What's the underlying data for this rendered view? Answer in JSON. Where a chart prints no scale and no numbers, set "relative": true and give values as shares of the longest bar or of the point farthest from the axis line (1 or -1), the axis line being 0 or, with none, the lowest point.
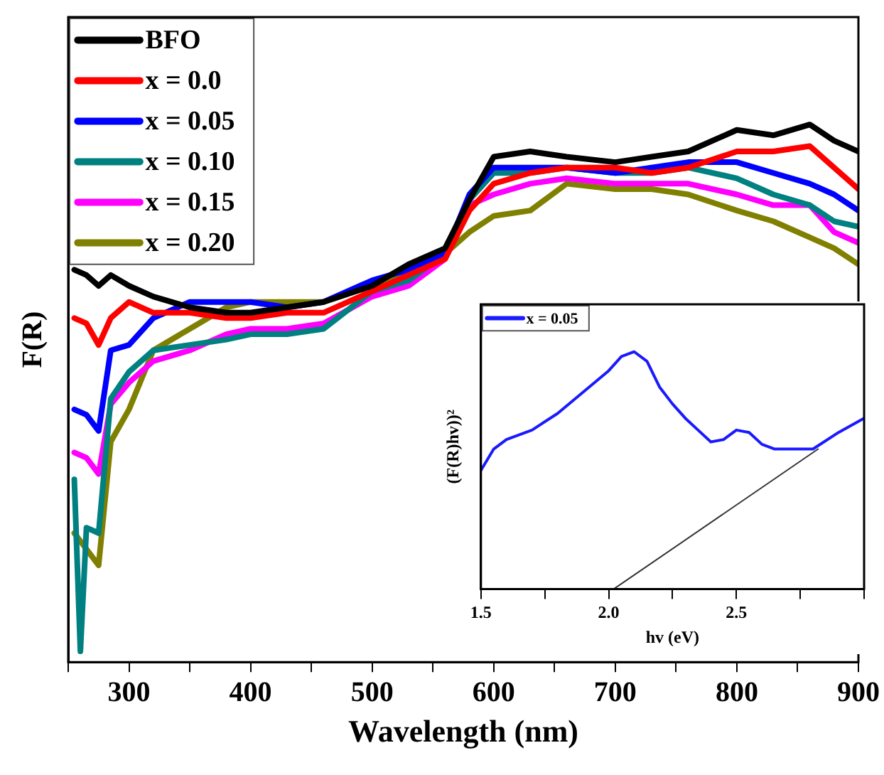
{
  "chart_data": [
    {
      "type": "line",
      "relative": true,
      "xlabel": "Wavelength (nm)",
      "ylabel": "F(R)",
      "xlim": [
        250,
        900
      ],
      "xticks": [
        {
          "value": 250,
          "label": null
        },
        300,
        {
          "value": 350,
          "label": null
        },
        400,
        {
          "value": 450,
          "label": null
        },
        500,
        {
          "value": 550,
          "label": null
        },
        600,
        {
          "value": 650,
          "label": null
        },
        700,
        {
          "value": 750,
          "label": null
        },
        800,
        {
          "value": 850,
          "label": null
        },
        900
      ],
      "x": [
        255,
        265,
        275,
        285,
        300,
        320,
        350,
        380,
        400,
        430,
        460,
        500,
        530,
        560,
        580,
        600,
        630,
        660,
        700,
        730,
        760,
        800,
        830,
        860,
        880,
        900
      ],
      "legend": "top left",
      "grid": false,
      "marker": "none",
      "line_style": "solid",
      "series": [
        {
          "name": "BFO",
          "color": "#000000",
          "values": [
            0.73,
            0.72,
            0.7,
            0.72,
            0.7,
            0.68,
            0.66,
            0.65,
            0.65,
            0.66,
            0.67,
            0.7,
            0.74,
            0.77,
            0.86,
            0.94,
            0.95,
            0.94,
            0.93,
            0.94,
            0.95,
            0.99,
            0.98,
            1.0,
            0.97,
            0.95
          ]
        },
        {
          "name": "x = 0.0",
          "color": "#ff0000",
          "values": [
            0.64,
            0.63,
            0.59,
            0.64,
            0.67,
            0.65,
            0.65,
            0.64,
            0.64,
            0.65,
            0.65,
            0.69,
            0.72,
            0.75,
            0.84,
            0.89,
            0.91,
            0.92,
            0.92,
            0.91,
            0.92,
            0.95,
            0.95,
            0.96,
            0.92,
            0.88
          ]
        },
        {
          "name": "x = 0.05",
          "color": "#0000ff",
          "values": [
            0.47,
            0.46,
            0.43,
            0.58,
            0.59,
            0.64,
            0.67,
            0.67,
            0.67,
            0.66,
            0.67,
            0.71,
            0.73,
            0.76,
            0.87,
            0.92,
            0.92,
            0.92,
            0.91,
            0.92,
            0.93,
            0.93,
            0.91,
            0.89,
            0.87,
            0.84
          ]
        },
        {
          "name": "x = 0.10",
          "color": "#008080",
          "x": [
            255,
            260,
            265,
            275,
            285,
            300,
            320,
            350,
            380,
            400,
            430,
            460,
            500,
            530,
            560,
            580,
            600,
            630,
            660,
            700,
            730,
            760,
            800,
            830,
            860,
            880,
            900
          ],
          "values": [
            0.34,
            0.02,
            0.25,
            0.24,
            0.49,
            0.54,
            0.58,
            0.59,
            0.6,
            0.61,
            0.61,
            0.62,
            0.69,
            0.71,
            0.76,
            0.86,
            0.91,
            0.91,
            0.92,
            0.91,
            0.91,
            0.92,
            0.9,
            0.87,
            0.85,
            0.82,
            0.81
          ]
        },
        {
          "name": "x = 0.15",
          "color": "#ff00ff",
          "values": [
            0.39,
            0.38,
            0.35,
            0.48,
            0.52,
            0.56,
            0.58,
            0.61,
            0.62,
            0.62,
            0.63,
            0.68,
            0.7,
            0.75,
            0.85,
            0.87,
            0.89,
            0.9,
            0.89,
            0.89,
            0.89,
            0.87,
            0.85,
            0.85,
            0.8,
            0.78
          ]
        },
        {
          "name": "x = 0.20",
          "color": "#808000",
          "values": [
            0.24,
            0.21,
            0.18,
            0.41,
            0.47,
            0.58,
            0.62,
            0.66,
            0.67,
            0.67,
            0.67,
            0.7,
            0.72,
            0.76,
            0.8,
            0.83,
            0.84,
            0.89,
            0.88,
            0.88,
            0.87,
            0.84,
            0.82,
            0.79,
            0.77,
            0.74
          ]
        }
      ]
    },
    {
      "type": "line",
      "relative": true,
      "xlabel": "hv (eV)",
      "ylabel": "(F(R)hv))²",
      "xlim": [
        1.5,
        3.0
      ],
      "xticks": [
        1.5,
        {
          "value": 1.75,
          "label": null
        },
        {
          "value": 2.0,
          "label": "2.0"
        },
        {
          "value": 2.25,
          "label": null
        },
        2.5,
        {
          "value": 2.75,
          "label": null
        },
        {
          "value": 3.0,
          "label": null
        }
      ],
      "x": [
        1.5,
        1.55,
        1.6,
        1.7,
        1.8,
        1.9,
        2.0,
        2.05,
        2.1,
        2.15,
        2.2,
        2.25,
        2.3,
        2.35,
        2.4,
        2.45,
        2.5,
        2.55,
        2.6,
        2.65,
        2.7,
        2.8,
        2.9,
        3.0
      ],
      "legend": "top left",
      "grid": false,
      "marker": "none",
      "line_style": "solid",
      "series": [
        {
          "name": "x = 0.05",
          "color": "#1a1aff",
          "values": [
            0.5,
            0.59,
            0.63,
            0.67,
            0.74,
            0.83,
            0.92,
            0.98,
            1.0,
            0.96,
            0.85,
            0.78,
            0.72,
            0.67,
            0.62,
            0.63,
            0.67,
            0.66,
            0.61,
            0.59,
            0.59,
            0.59,
            0.66,
            0.72
          ]
        },
        {
          "type": "line",
          "color": "#333333",
          "x": [
            2.02,
            2.82
          ],
          "values": [
            0,
            0.59
          ]
        }
      ]
    }
  ]
}
